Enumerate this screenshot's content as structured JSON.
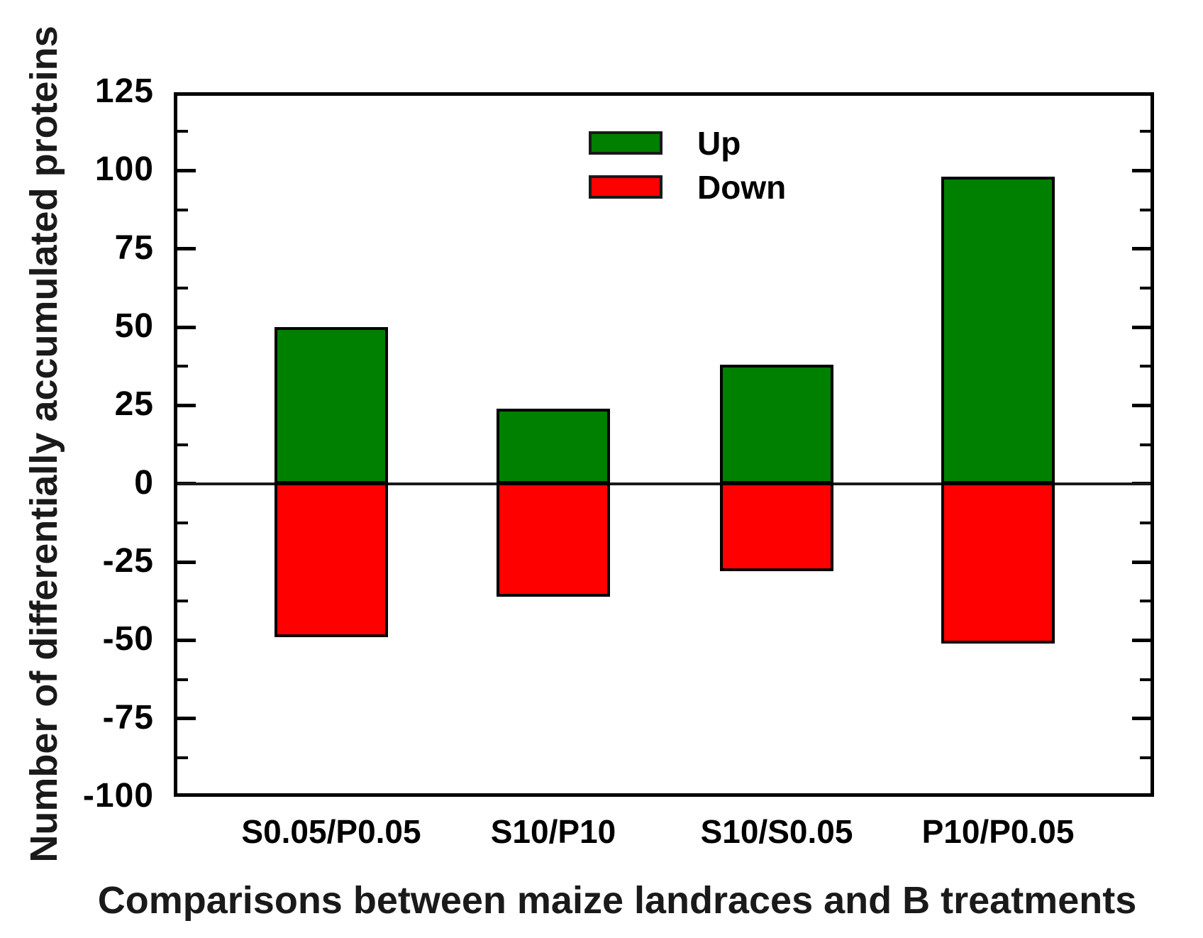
{
  "figure": {
    "background": "#ffffff",
    "axis_color": "#000000"
  },
  "chart_data": {
    "type": "bar",
    "title": "",
    "xlabel": "Comparisons between maize landraces and B treatments",
    "ylabel": "Number of differentially accumulated proteins",
    "categories": [
      "S0.05/P0.05",
      "S10/P10",
      "S10/S0.05",
      "P10/P0.05"
    ],
    "series": [
      {
        "name": "Up",
        "color": "#008000",
        "values": [
          50,
          24,
          38,
          98
        ]
      },
      {
        "name": "Down",
        "color": "#ff0000",
        "values": [
          -49,
          -36,
          -28,
          -51
        ]
      }
    ],
    "ylim": [
      -100,
      125
    ],
    "yticks": [
      125,
      100,
      75,
      50,
      25,
      0,
      -25,
      -50,
      -75,
      -100
    ],
    "minor_tick_step": 12.5,
    "grid": false,
    "zero_line": true,
    "legend_position": "top-center-inside",
    "legend": [
      {
        "label": "Up",
        "color": "#008000"
      },
      {
        "label": "Down",
        "color": "#ff0000"
      }
    ]
  }
}
